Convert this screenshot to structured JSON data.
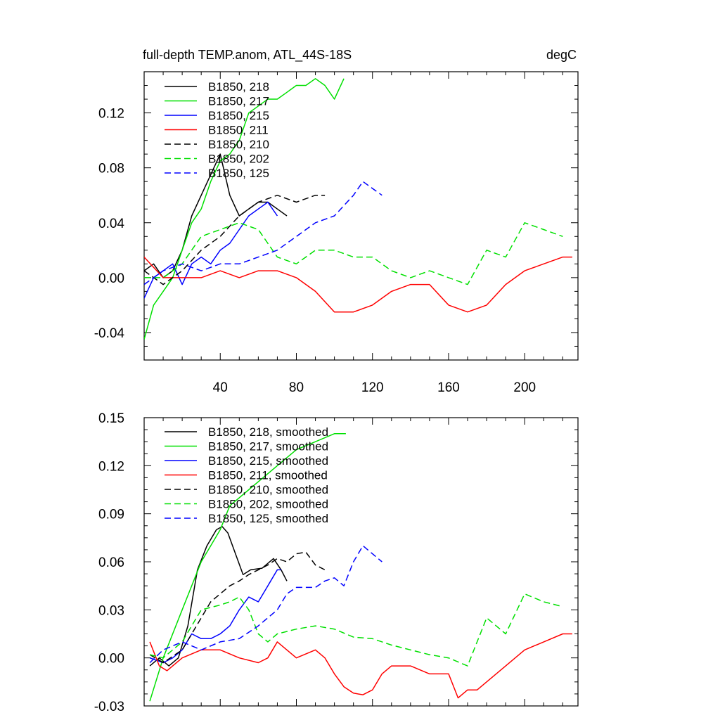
{
  "chart_data": [
    {
      "type": "line",
      "title": "full-depth TEMP.anom, ATL_44S-18S",
      "units_label": "degC",
      "xlim": [
        0,
        228
      ],
      "ylim": [
        -0.06,
        0.15
      ],
      "x_ticks": [
        40,
        80,
        120,
        160,
        200
      ],
      "y_ticks": [
        -0.04,
        0.0,
        0.04,
        0.08,
        0.12
      ],
      "y_tick_labels": [
        "-0.04",
        "0.00",
        "0.04",
        "0.08",
        "0.12"
      ],
      "legend_position": "top-left",
      "series": [
        {
          "name": "B1850, 218",
          "color": "#000000",
          "dash": "solid",
          "x": [
            0,
            5,
            10,
            15,
            20,
            25,
            30,
            35,
            40,
            45,
            50,
            55,
            60,
            65,
            70,
            75
          ],
          "y": [
            0.005,
            0.01,
            0.0,
            0.005,
            0.02,
            0.045,
            0.06,
            0.075,
            0.09,
            0.06,
            0.045,
            0.05,
            0.055,
            0.055,
            0.05,
            0.045
          ]
        },
        {
          "name": "B1850, 217",
          "color": "#00e000",
          "dash": "solid",
          "x": [
            0,
            5,
            10,
            15,
            20,
            25,
            30,
            35,
            40,
            45,
            50,
            55,
            60,
            65,
            70,
            75,
            80,
            85,
            90,
            95,
            100,
            105
          ],
          "y": [
            -0.045,
            -0.02,
            -0.01,
            0.0,
            0.02,
            0.04,
            0.05,
            0.07,
            0.085,
            0.09,
            0.1,
            0.12,
            0.125,
            0.13,
            0.13,
            0.135,
            0.14,
            0.14,
            0.145,
            0.14,
            0.13,
            0.145
          ]
        },
        {
          "name": "B1850, 215",
          "color": "#0000ff",
          "dash": "solid",
          "x": [
            0,
            5,
            10,
            15,
            20,
            25,
            30,
            35,
            40,
            45,
            50,
            55,
            60,
            65,
            70
          ],
          "y": [
            -0.015,
            0.0,
            0.005,
            0.01,
            -0.005,
            0.01,
            0.015,
            0.01,
            0.02,
            0.025,
            0.035,
            0.045,
            0.05,
            0.055,
            0.045
          ]
        },
        {
          "name": "B1850, 211",
          "color": "#ff0000",
          "dash": "solid",
          "x": [
            0,
            10,
            20,
            30,
            40,
            50,
            60,
            70,
            80,
            90,
            100,
            110,
            120,
            130,
            140,
            150,
            160,
            170,
            180,
            190,
            200,
            210,
            220,
            225
          ],
          "y": [
            0.015,
            0.0,
            0.0,
            0.0,
            0.005,
            0.0,
            0.005,
            0.005,
            0.0,
            -0.01,
            -0.025,
            -0.025,
            -0.02,
            -0.01,
            -0.005,
            -0.005,
            -0.02,
            -0.025,
            -0.02,
            -0.005,
            0.005,
            0.01,
            0.015,
            0.015
          ]
        },
        {
          "name": "B1850, 210",
          "color": "#000000",
          "dash": "dashed",
          "x": [
            0,
            10,
            20,
            30,
            40,
            50,
            60,
            70,
            80,
            90,
            95
          ],
          "y": [
            0.005,
            -0.005,
            0.005,
            0.02,
            0.03,
            0.045,
            0.055,
            0.06,
            0.055,
            0.06,
            0.06
          ]
        },
        {
          "name": "B1850, 202",
          "color": "#00e000",
          "dash": "dashed",
          "x": [
            0,
            10,
            20,
            30,
            40,
            50,
            60,
            70,
            80,
            90,
            100,
            110,
            120,
            130,
            140,
            150,
            160,
            170,
            180,
            190,
            200,
            210,
            220
          ],
          "y": [
            0.0,
            0.0,
            0.01,
            0.03,
            0.035,
            0.04,
            0.035,
            0.015,
            0.01,
            0.02,
            0.02,
            0.015,
            0.015,
            0.005,
            0.0,
            0.005,
            0.0,
            -0.005,
            0.02,
            0.015,
            0.04,
            0.035,
            0.03
          ]
        },
        {
          "name": "B1850, 125",
          "color": "#0000ff",
          "dash": "dashed",
          "x": [
            0,
            10,
            20,
            30,
            40,
            50,
            60,
            70,
            80,
            90,
            100,
            110,
            115,
            120,
            125
          ],
          "y": [
            -0.005,
            0.005,
            0.01,
            0.005,
            0.01,
            0.01,
            0.015,
            0.02,
            0.03,
            0.04,
            0.045,
            0.06,
            0.07,
            0.065,
            0.06
          ]
        }
      ]
    },
    {
      "type": "line",
      "xlim": [
        0,
        228
      ],
      "ylim": [
        -0.03,
        0.15
      ],
      "x_ticks": [
        40,
        80,
        120,
        160,
        200
      ],
      "y_ticks": [
        -0.03,
        0.0,
        0.03,
        0.06,
        0.09,
        0.12,
        0.15
      ],
      "y_tick_labels": [
        "-0.03",
        "0.00",
        "0.03",
        "0.06",
        "0.09",
        "0.12",
        "0.15"
      ],
      "legend_position": "top-left",
      "series": [
        {
          "name": "B1850, 218, smoothed",
          "color": "#000000",
          "dash": "solid",
          "x": [
            3,
            8,
            13,
            18,
            23,
            28,
            33,
            38,
            41,
            44,
            48,
            52,
            56,
            62,
            68,
            72,
            75
          ],
          "y": [
            -0.005,
            0.0,
            -0.005,
            0.0,
            0.02,
            0.055,
            0.07,
            0.08,
            0.082,
            0.078,
            0.065,
            0.052,
            0.055,
            0.056,
            0.062,
            0.055,
            0.048
          ]
        },
        {
          "name": "B1850, 217, smoothed",
          "color": "#00e000",
          "dash": "solid",
          "x": [
            3,
            10,
            20,
            30,
            40,
            45,
            50,
            55,
            60,
            70,
            80,
            90,
            100,
            106
          ],
          "y": [
            -0.027,
            0.0,
            0.03,
            0.06,
            0.08,
            0.095,
            0.1,
            0.105,
            0.11,
            0.12,
            0.13,
            0.135,
            0.14,
            0.14
          ]
        },
        {
          "name": "B1850, 215, smoothed",
          "color": "#0000ff",
          "dash": "solid",
          "x": [
            3,
            10,
            15,
            20,
            25,
            30,
            35,
            40,
            45,
            50,
            55,
            60,
            65,
            70,
            72
          ],
          "y": [
            0.0,
            -0.003,
            0.0,
            0.005,
            0.015,
            0.012,
            0.012,
            0.015,
            0.02,
            0.03,
            0.038,
            0.035,
            0.045,
            0.055,
            0.055
          ]
        },
        {
          "name": "B1850, 211, smoothed",
          "color": "#ff0000",
          "dash": "solid",
          "x": [
            3,
            8,
            12,
            20,
            30,
            40,
            50,
            60,
            65,
            70,
            80,
            90,
            95,
            100,
            105,
            110,
            115,
            120,
            125,
            130,
            140,
            150,
            160,
            165,
            170,
            175,
            180,
            190,
            200,
            210,
            220,
            225
          ],
          "y": [
            0.01,
            -0.005,
            -0.008,
            0.0,
            0.005,
            0.005,
            0.0,
            -0.003,
            0.0,
            0.01,
            0.0,
            0.005,
            0.0,
            -0.01,
            -0.018,
            -0.022,
            -0.023,
            -0.02,
            -0.01,
            -0.005,
            -0.005,
            -0.01,
            -0.01,
            -0.025,
            -0.02,
            -0.02,
            -0.015,
            -0.005,
            0.005,
            0.01,
            0.015,
            0.015
          ]
        },
        {
          "name": "B1850, 210, smoothed",
          "color": "#000000",
          "dash": "dashed",
          "x": [
            3,
            10,
            20,
            25,
            30,
            35,
            40,
            45,
            50,
            55,
            60,
            65,
            70,
            75,
            80,
            85,
            90,
            95
          ],
          "y": [
            0.002,
            -0.003,
            0.005,
            0.015,
            0.025,
            0.035,
            0.04,
            0.045,
            0.048,
            0.052,
            0.055,
            0.058,
            0.062,
            0.06,
            0.065,
            0.066,
            0.058,
            0.055
          ]
        },
        {
          "name": "B1850, 202, smoothed",
          "color": "#00e000",
          "dash": "dashed",
          "x": [
            3,
            10,
            20,
            30,
            40,
            45,
            50,
            55,
            60,
            65,
            70,
            80,
            90,
            100,
            110,
            120,
            130,
            140,
            150,
            160,
            170,
            180,
            190,
            200,
            210,
            220
          ],
          "y": [
            0.002,
            0.0,
            0.01,
            0.03,
            0.033,
            0.035,
            0.038,
            0.03,
            0.015,
            0.01,
            0.015,
            0.018,
            0.02,
            0.018,
            0.013,
            0.012,
            0.008,
            0.005,
            0.002,
            0.0,
            -0.005,
            0.025,
            0.015,
            0.04,
            0.035,
            0.032
          ]
        },
        {
          "name": "B1850, 125, smoothed",
          "color": "#0000ff",
          "dash": "dashed",
          "x": [
            3,
            10,
            20,
            30,
            40,
            50,
            60,
            70,
            75,
            80,
            90,
            95,
            100,
            105,
            110,
            115,
            120,
            125
          ],
          "y": [
            -0.003,
            0.005,
            0.01,
            0.005,
            0.01,
            0.012,
            0.02,
            0.03,
            0.04,
            0.044,
            0.044,
            0.048,
            0.05,
            0.045,
            0.06,
            0.07,
            0.065,
            0.06
          ]
        }
      ]
    }
  ]
}
